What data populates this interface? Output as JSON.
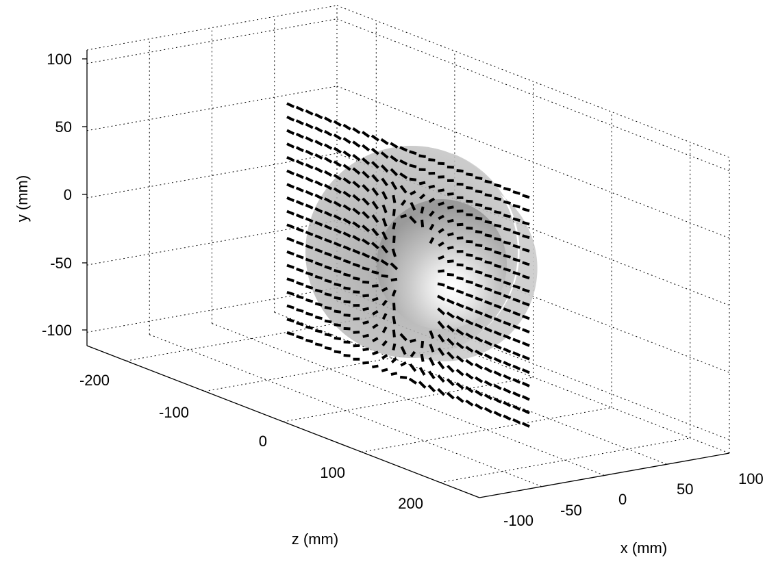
{
  "chart_data": {
    "type": "3d-vector-field",
    "xlabel": "x (mm)",
    "ylabel": "y (mm)",
    "zlabel": "z (mm)",
    "x_ticks": [
      "-100",
      "-50",
      "0",
      "50",
      "100"
    ],
    "y_ticks": [
      "100",
      "50",
      "0",
      "-50",
      "-100"
    ],
    "z_ticks": [
      "-200",
      "-100",
      "0",
      "100",
      "200"
    ],
    "xlim": [
      -100,
      100
    ],
    "ylim": [
      -100,
      100
    ],
    "zlim": [
      -250,
      250
    ],
    "grid": true,
    "grid_style": "dotted",
    "objects": [
      {
        "name": "outer-sphere",
        "shape": "sphere",
        "color": "#a8a8a8",
        "opacity": 0.55
      },
      {
        "name": "inner-sphere",
        "shape": "sphere",
        "color": "#c8c8c8",
        "shading": "specular"
      }
    ],
    "vector_field": {
      "plane": "x = 0",
      "marker_color": "#000000",
      "y_range": [
        -100,
        70
      ],
      "z_range": [
        -150,
        150
      ]
    }
  }
}
